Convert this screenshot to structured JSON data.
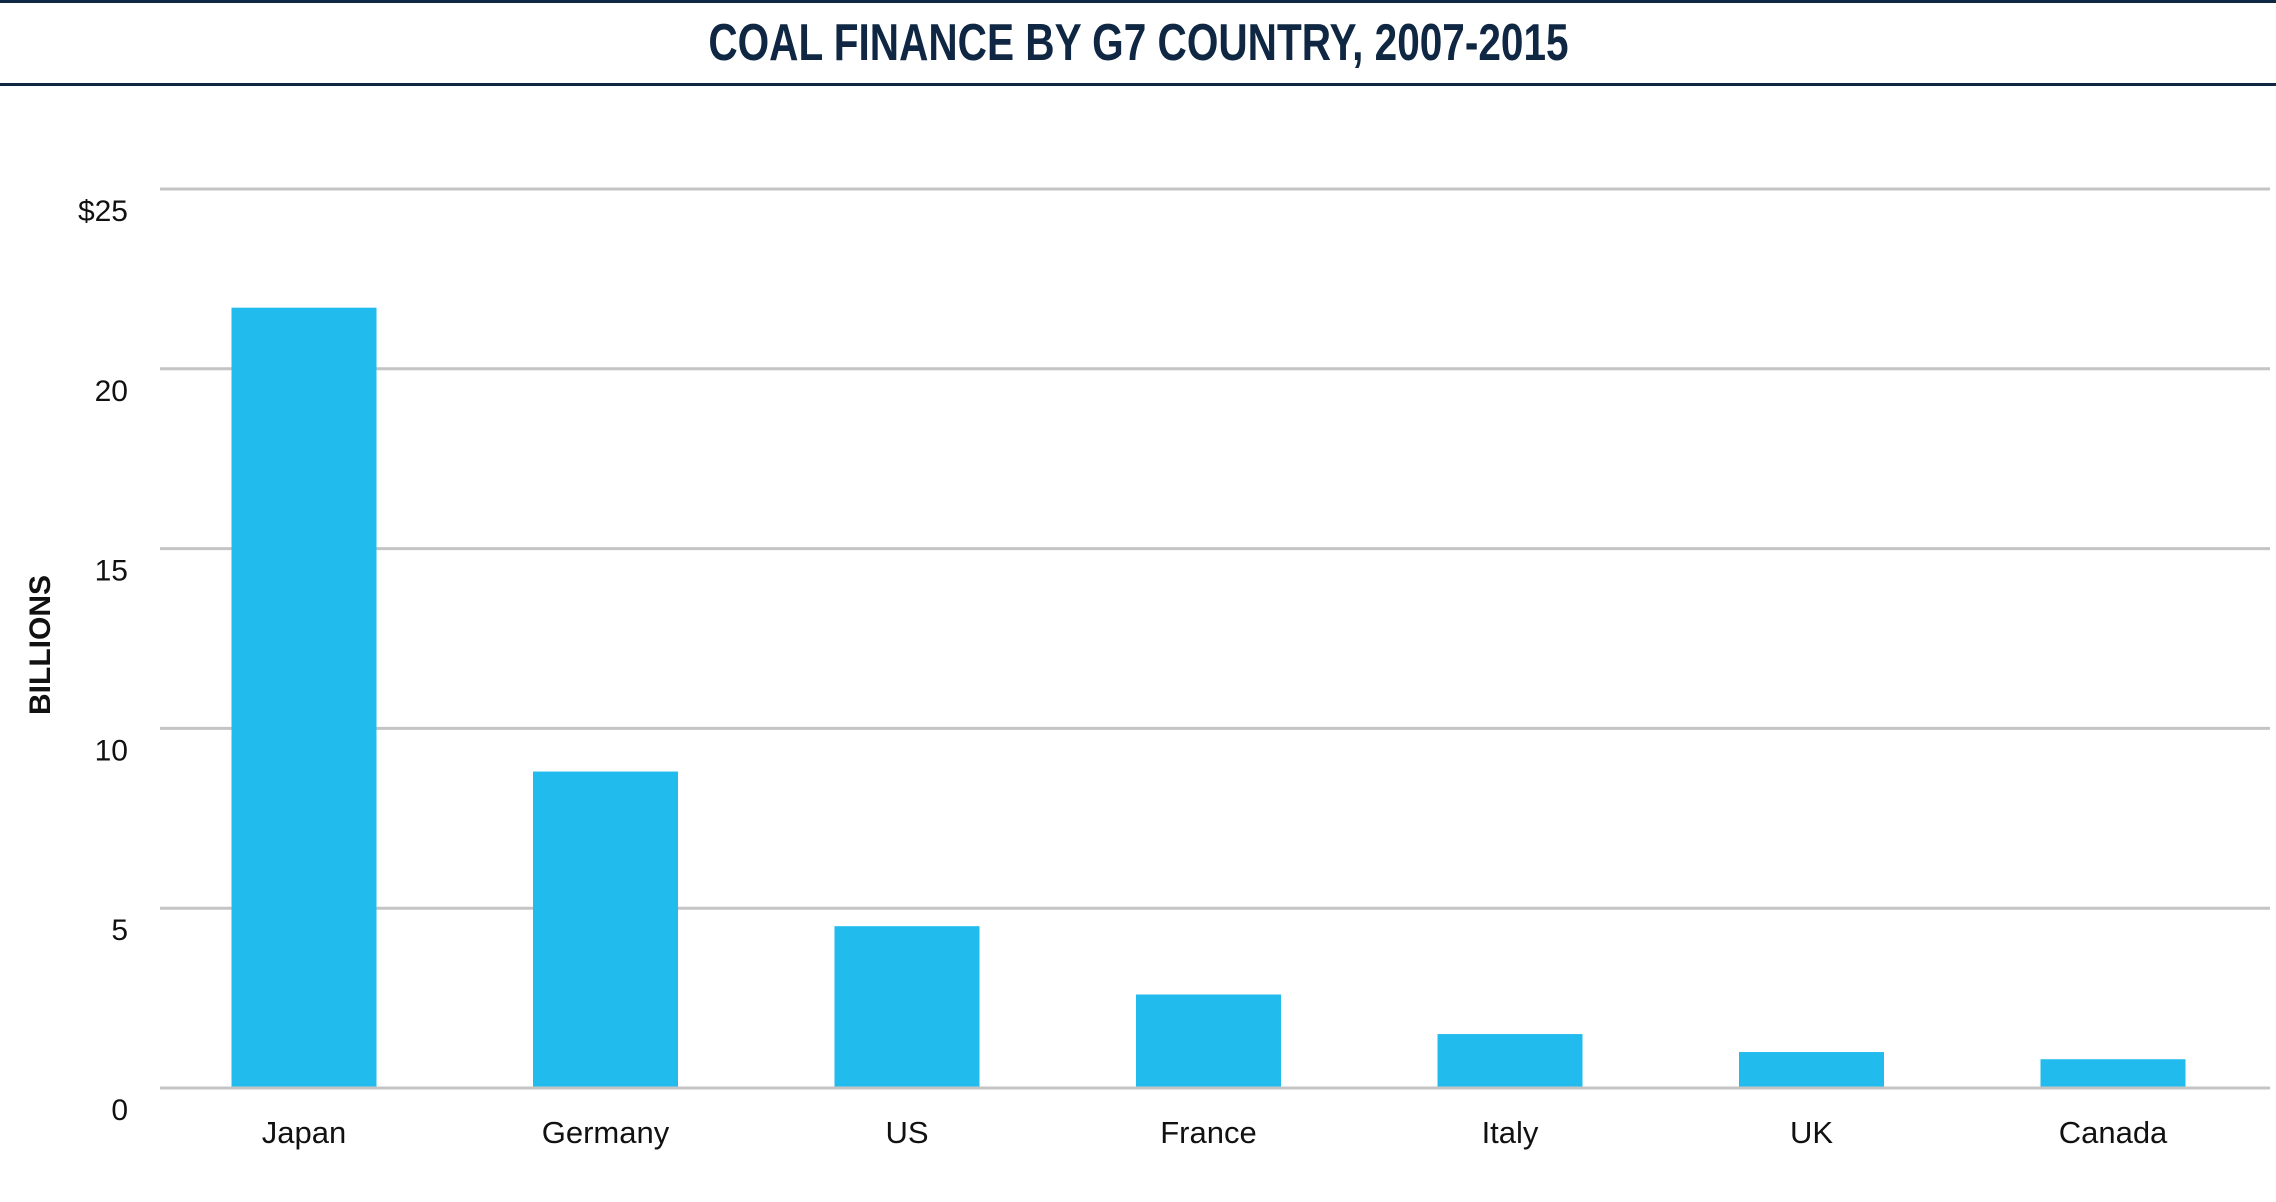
{
  "chart_data": {
    "type": "bar",
    "title": "COAL FINANCE BY G7 COUNTRY, 2007-2015",
    "xlabel": "",
    "ylabel": "BILLIONS",
    "categories": [
      "Japan",
      "Germany",
      "US",
      "France",
      "Italy",
      "UK",
      "Canada"
    ],
    "values": [
      21.7,
      8.8,
      4.5,
      2.6,
      1.5,
      1.0,
      0.8
    ],
    "ylim": [
      0,
      25
    ],
    "yticks": [
      0,
      5,
      10,
      15,
      20,
      25
    ],
    "ytick_labels": [
      "0",
      "5",
      "10",
      "15",
      "20",
      "$25"
    ],
    "grid": true,
    "legend": "none"
  },
  "colors": {
    "bar": "#22bbed",
    "grid": "#c4c4c4",
    "title": "#0f2742"
  }
}
